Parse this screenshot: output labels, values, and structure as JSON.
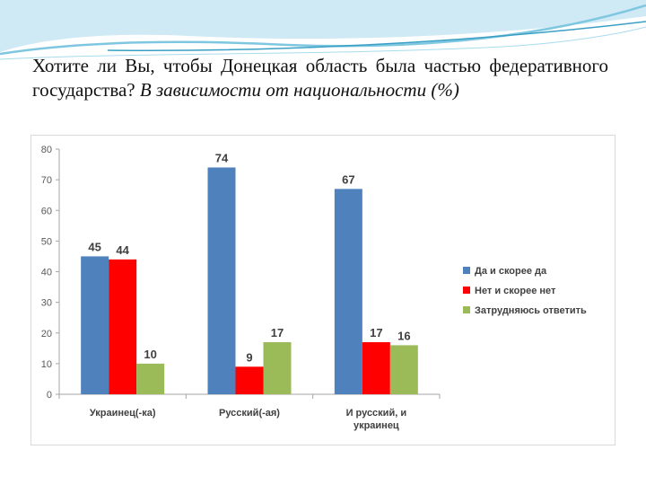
{
  "slide": {
    "title_part1": "Хотите ли Вы, чтобы Донецкая область была частью федеративного государства? ",
    "title_part2": "В зависимости от национальности (%)"
  },
  "colors": {
    "decor_light": "#cfeaf4",
    "decor_mid": "#7fc7e0",
    "decor_dark": "#3a9fc4"
  },
  "chart_data": {
    "type": "bar",
    "title": "",
    "xlabel": "",
    "ylabel": "",
    "categories": [
      "Украинец(-ка)",
      "Русский(-ая)",
      "И русский, и украинец"
    ],
    "ylim": [
      0,
      80
    ],
    "yticks": [
      0,
      10,
      20,
      30,
      40,
      50,
      60,
      70,
      80
    ],
    "grid": false,
    "legend_position": "right",
    "series": [
      {
        "name": "Да и скорее да",
        "color": "#4f81bd",
        "values": [
          45,
          74,
          67
        ]
      },
      {
        "name": "Нет и скорее нет",
        "color": "#ff0000",
        "values": [
          44,
          9,
          17
        ]
      },
      {
        "name": "Затрудняюсь ответить",
        "color": "#9bbb59",
        "values": [
          10,
          17,
          16
        ]
      }
    ]
  }
}
